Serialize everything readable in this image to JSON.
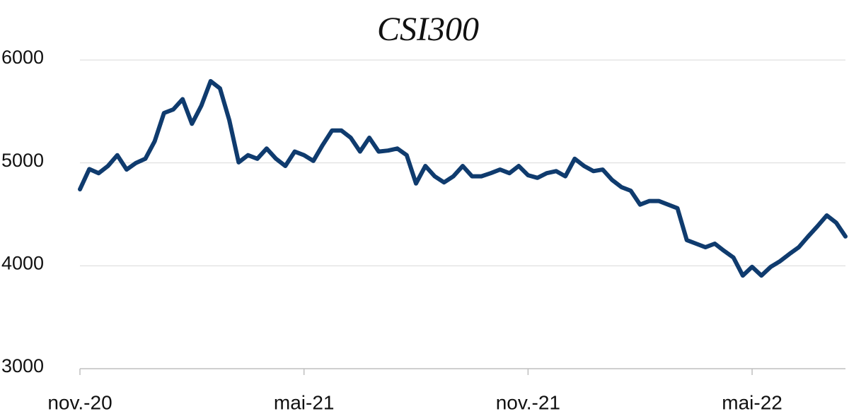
{
  "chart_data": {
    "type": "line",
    "title": "CSI300",
    "categories": [
      "nov.-20",
      null,
      null,
      null,
      null,
      null,
      null,
      null,
      null,
      null,
      null,
      null,
      null,
      null,
      null,
      null,
      null,
      null,
      null,
      null,
      null,
      null,
      null,
      null,
      "mai-21",
      null,
      null,
      null,
      null,
      null,
      null,
      null,
      null,
      null,
      null,
      null,
      null,
      null,
      null,
      null,
      null,
      null,
      null,
      null,
      null,
      null,
      null,
      null,
      "nov.-21",
      null,
      null,
      null,
      null,
      null,
      null,
      null,
      null,
      null,
      null,
      null,
      null,
      null,
      null,
      null,
      null,
      null,
      null,
      null,
      null,
      null,
      null,
      null,
      "mai-22",
      null,
      null,
      null,
      null,
      null,
      null,
      null,
      null,
      null,
      null
    ],
    "series": [
      {
        "name": "CSI300",
        "color": "#0f3b6e",
        "values": [
          4744,
          4940,
          4900,
          4970,
          5075,
          4935,
          5000,
          5040,
          5210,
          5485,
          5520,
          5620,
          5380,
          5555,
          5795,
          5725,
          5415,
          5005,
          5075,
          5040,
          5140,
          5040,
          4970,
          5110,
          5075,
          5020,
          5175,
          5315,
          5315,
          5245,
          5110,
          5245,
          5110,
          5120,
          5140,
          5075,
          4800,
          4970,
          4870,
          4810,
          4870,
          4970,
          4870,
          4870,
          4900,
          4935,
          4900,
          4970,
          4880,
          4855,
          4900,
          4920,
          4870,
          5040,
          4970,
          4920,
          4935,
          4835,
          4765,
          4730,
          4595,
          4630,
          4630,
          4595,
          4560,
          4250,
          4215,
          4180,
          4215,
          4145,
          4080,
          3905,
          3990,
          3905,
          3990,
          4045,
          4115,
          4180,
          4285,
          4385,
          4490,
          4420,
          4285
        ]
      }
    ],
    "ylim": [
      3000,
      6000
    ],
    "yticks": [
      3000,
      4000,
      5000,
      6000
    ],
    "grid": true
  }
}
